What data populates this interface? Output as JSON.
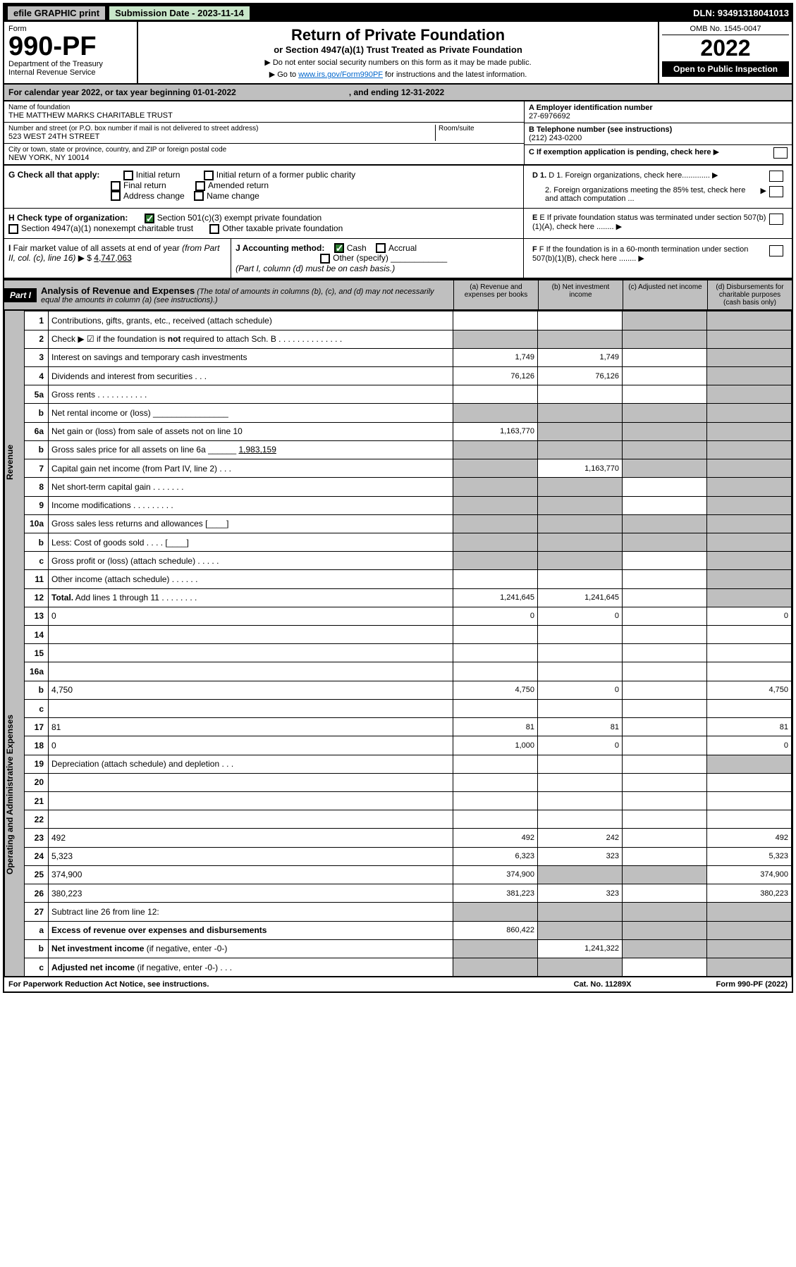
{
  "topbar": {
    "efile": "efile GRAPHIC print",
    "sub_label": "Submission Date - 2023-11-14",
    "dln": "DLN: 93491318041013"
  },
  "header": {
    "form_word": "Form",
    "form_no": "990-PF",
    "dept": "Department of the Treasury",
    "irs": "Internal Revenue Service",
    "title": "Return of Private Foundation",
    "subtitle": "or Section 4947(a)(1) Trust Treated as Private Foundation",
    "note1": "▶ Do not enter social security numbers on this form as it may be made public.",
    "note2_pre": "▶ Go to ",
    "note2_link": "www.irs.gov/Form990PF",
    "note2_post": " for instructions and the latest information.",
    "omb": "OMB No. 1545-0047",
    "year": "2022",
    "open": "Open to Public Inspection"
  },
  "calrow": {
    "a": "For calendar year 2022, or tax year beginning 01-01-2022",
    "b": ", and ending 12-31-2022"
  },
  "info": {
    "name_lbl": "Name of foundation",
    "name": "THE MATTHEW MARKS CHARITABLE TRUST",
    "addr_lbl": "Number and street (or P.O. box number if mail is not delivered to street address)",
    "addr": "523 WEST 24TH STREET",
    "room_lbl": "Room/suite",
    "city_lbl": "City or town, state or province, country, and ZIP or foreign postal code",
    "city": "NEW YORK, NY  10014",
    "a_lbl": "A Employer identification number",
    "a_val": "27-6976692",
    "b_lbl": "B Telephone number (see instructions)",
    "b_val": "(212) 243-0200",
    "c_lbl": "C If exemption application is pending, check here",
    "d1": "D 1. Foreign organizations, check here.............",
    "d2": "2. Foreign organizations meeting the 85% test, check here and attach computation ...",
    "e_lbl": "E  If private foundation status was terminated under section 507(b)(1)(A), check here ........",
    "f_lbl": "F  If the foundation is in a 60-month termination under section 507(b)(1)(B), check here ........"
  },
  "g": {
    "lbl": "G Check all that apply:",
    "o1": "Initial return",
    "o2": "Initial return of a former public charity",
    "o3": "Final return",
    "o4": "Amended return",
    "o5": "Address change",
    "o6": "Name change"
  },
  "h": {
    "lbl": "H Check type of organization:",
    "o1": "Section 501(c)(3) exempt private foundation",
    "o2": "Section 4947(a)(1) nonexempt charitable trust",
    "o3": "Other taxable private foundation"
  },
  "i": {
    "lbl": "I Fair market value of all assets at end of year (from Part II, col. (c), line 16) ▶ $",
    "val": "4,747,063"
  },
  "j": {
    "lbl": "J Accounting method:",
    "o1": "Cash",
    "o2": "Accrual",
    "o3": "Other (specify)",
    "note": "(Part I, column (d) must be on cash basis.)"
  },
  "part1": {
    "hdr": "Part I",
    "title": "Analysis of Revenue and Expenses",
    "title_note": " (The total of amounts in columns (b), (c), and (d) may not necessarily equal the amounts in column (a) (see instructions).)",
    "col_a": "(a) Revenue and expenses per books",
    "col_b": "(b) Net investment income",
    "col_c": "(c) Adjusted net income",
    "col_d": "(d) Disbursements for charitable purposes (cash basis only)"
  },
  "side": {
    "rev": "Revenue",
    "exp": "Operating and Administrative Expenses"
  },
  "rows": [
    {
      "n": "1",
      "d": "Contributions, gifts, grants, etc., received (attach schedule)",
      "a": "",
      "b": "",
      "c_grey": true,
      "d_grey": true
    },
    {
      "n": "2",
      "d": "Check ▶ ☑ if the foundation is <b>not</b> required to attach Sch. B   .   .   .   .   .   .   .   .   .   .   .   .   .   .",
      "a_grey": true,
      "b_grey": true,
      "c_grey": true,
      "d_grey": true
    },
    {
      "n": "3",
      "d": "Interest on savings and temporary cash investments",
      "a": "1,749",
      "b": "1,749",
      "c": "",
      "d_grey": true
    },
    {
      "n": "4",
      "d": "Dividends and interest from securities   .   .   .",
      "a": "76,126",
      "b": "76,126",
      "c": "",
      "d_grey": true
    },
    {
      "n": "5a",
      "d": "Gross rents   .   .   .   .   .   .   .   .   .   .   .",
      "a": "",
      "b": "",
      "c": "",
      "d_grey": true
    },
    {
      "n": "b",
      "d": "Net rental income or (loss) ________________",
      "a_grey": true,
      "b_grey": true,
      "c_grey": true,
      "d_grey": true
    },
    {
      "n": "6a",
      "d": "Net gain or (loss) from sale of assets not on line 10",
      "a": "1,163,770",
      "b_grey": true,
      "c_grey": true,
      "d_grey": true
    },
    {
      "n": "b",
      "d": "Gross sales price for all assets on line 6a ______ <u>1,983,159</u>",
      "a_grey": true,
      "b_grey": true,
      "c_grey": true,
      "d_grey": true
    },
    {
      "n": "7",
      "d": "Capital gain net income (from Part IV, line 2)   .   .   .",
      "a_grey": true,
      "b": "1,163,770",
      "c_grey": true,
      "d_grey": true
    },
    {
      "n": "8",
      "d": "Net short-term capital gain   .   .   .   .   .   .   .",
      "a_grey": true,
      "b_grey": true,
      "c": "",
      "d_grey": true
    },
    {
      "n": "9",
      "d": "Income modifications   .   .   .   .   .   .   .   .   .",
      "a_grey": true,
      "b_grey": true,
      "c": "",
      "d_grey": true
    },
    {
      "n": "10a",
      "d": "Gross sales less returns and allowances  [____]",
      "a_grey": true,
      "b_grey": true,
      "c_grey": true,
      "d_grey": true
    },
    {
      "n": "b",
      "d": "Less: Cost of goods sold   .   .   .   .  [____]",
      "a_grey": true,
      "b_grey": true,
      "c_grey": true,
      "d_grey": true
    },
    {
      "n": "c",
      "d": "Gross profit or (loss) (attach schedule)   .   .   .   .   .",
      "a_grey": true,
      "b_grey": true,
      "c": "",
      "d_grey": true
    },
    {
      "n": "11",
      "d": "Other income (attach schedule)   .   .   .   .   .   .",
      "a": "",
      "b": "",
      "c": "",
      "d_grey": true
    },
    {
      "n": "12",
      "d": "<b>Total.</b> Add lines 1 through 11   .   .   .   .   .   .   .   .",
      "a": "1,241,645",
      "b": "1,241,645",
      "c": "",
      "d_grey": true
    },
    {
      "n": "13",
      "d": "0",
      "a": "0",
      "b": "0",
      "c": ""
    },
    {
      "n": "14",
      "d": "",
      "a": "",
      "b": "",
      "c": ""
    },
    {
      "n": "15",
      "d": "",
      "a": "",
      "b": "",
      "c": ""
    },
    {
      "n": "16a",
      "d": "",
      "a": "",
      "b": "",
      "c": ""
    },
    {
      "n": "b",
      "d": "4,750",
      "a": "4,750",
      "b": "0",
      "c": ""
    },
    {
      "n": "c",
      "d": "",
      "a": "",
      "b": "",
      "c": ""
    },
    {
      "n": "17",
      "d": "81",
      "a": "81",
      "b": "81",
      "c": ""
    },
    {
      "n": "18",
      "d": "0",
      "a": "1,000",
      "b": "0",
      "c": ""
    },
    {
      "n": "19",
      "d": "Depreciation (attach schedule) and depletion   .   .   .",
      "a": "",
      "b": "",
      "c": "",
      "d_grey": true
    },
    {
      "n": "20",
      "d": "",
      "a": "",
      "b": "",
      "c": ""
    },
    {
      "n": "21",
      "d": "",
      "a": "",
      "b": "",
      "c": ""
    },
    {
      "n": "22",
      "d": "",
      "a": "",
      "b": "",
      "c": ""
    },
    {
      "n": "23",
      "d": "492",
      "a": "492",
      "b": "242",
      "c": ""
    },
    {
      "n": "24",
      "d": "5,323",
      "a": "6,323",
      "b": "323",
      "c": ""
    },
    {
      "n": "25",
      "d": "374,900",
      "a": "374,900",
      "b_grey": true,
      "c_grey": true
    },
    {
      "n": "26",
      "d": "380,223",
      "a": "381,223",
      "b": "323",
      "c": ""
    },
    {
      "n": "27",
      "d": "Subtract line 26 from line 12:",
      "a_grey": true,
      "b_grey": true,
      "c_grey": true,
      "d_grey": true
    },
    {
      "n": "a",
      "d": "<b>Excess of revenue over expenses and disbursements</b>",
      "a": "860,422",
      "b_grey": true,
      "c_grey": true,
      "d_grey": true
    },
    {
      "n": "b",
      "d": "<b>Net investment income</b> (if negative, enter -0-)",
      "a_grey": true,
      "b": "1,241,322",
      "c_grey": true,
      "d_grey": true
    },
    {
      "n": "c",
      "d": "<b>Adjusted net income</b> (if negative, enter -0-)   .   .   .",
      "a_grey": true,
      "b_grey": true,
      "c": "",
      "d_grey": true
    }
  ],
  "footer": {
    "l": "For Paperwork Reduction Act Notice, see instructions.",
    "m": "Cat. No. 11289X",
    "r": "Form 990-PF (2022)"
  }
}
